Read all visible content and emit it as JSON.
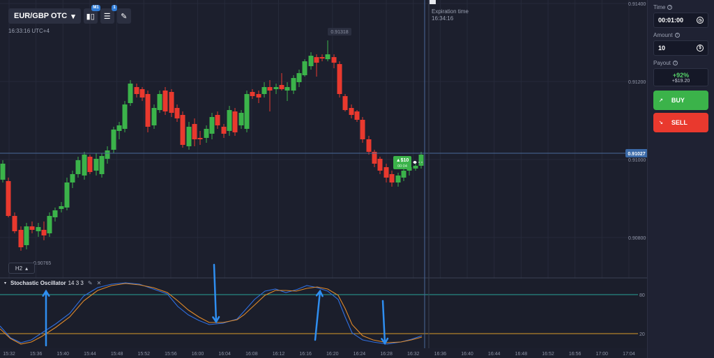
{
  "toolbar": {
    "pair": "EUR/GBP OTC",
    "indicator_badge": "M1",
    "settings_badge": "1"
  },
  "clock": "16:33:16 UTC+4",
  "timeframe": "H2",
  "expiration": {
    "title": "Expiration time",
    "time": "16:34:16"
  },
  "price_axis": {
    "labels": [
      "0.91400",
      "0.91200",
      "0.91000",
      "0.90800"
    ],
    "current": "0.91027",
    "high_label": "0.91318",
    "low_label": "0.90765"
  },
  "trade_marker": {
    "amount": "$10",
    "timer": "00:04"
  },
  "indicator": {
    "name": "Stochastic Oscillator",
    "params": "14 3 3",
    "levels": [
      "80",
      "20"
    ]
  },
  "time_axis": [
    "15:32",
    "15:36",
    "15:40",
    "15:44",
    "15:48",
    "15:52",
    "15:56",
    "16:00",
    "16:04",
    "16:08",
    "16:12",
    "16:16",
    "16:20",
    "16:24",
    "16:28",
    "16:32",
    "16:36",
    "16:40",
    "16:44",
    "16:48",
    "16:52",
    "16:56",
    "17:00",
    "17:04"
  ],
  "sidebar": {
    "time_label": "Time",
    "time_value": "00:01:00",
    "amount_label": "Amount",
    "amount_value": "10",
    "payout_label": "Payout",
    "payout_pct": "+92%",
    "payout_amount": "+$19.20",
    "buy_label": "BUY",
    "sell_label": "SELL"
  },
  "colors": {
    "up": "#3bb34a",
    "down": "#e9392e",
    "k_line": "#2f6fe0",
    "d_line": "#e08a2a",
    "level_80": "#2aa39a",
    "level_20": "#d99a2a"
  }
}
